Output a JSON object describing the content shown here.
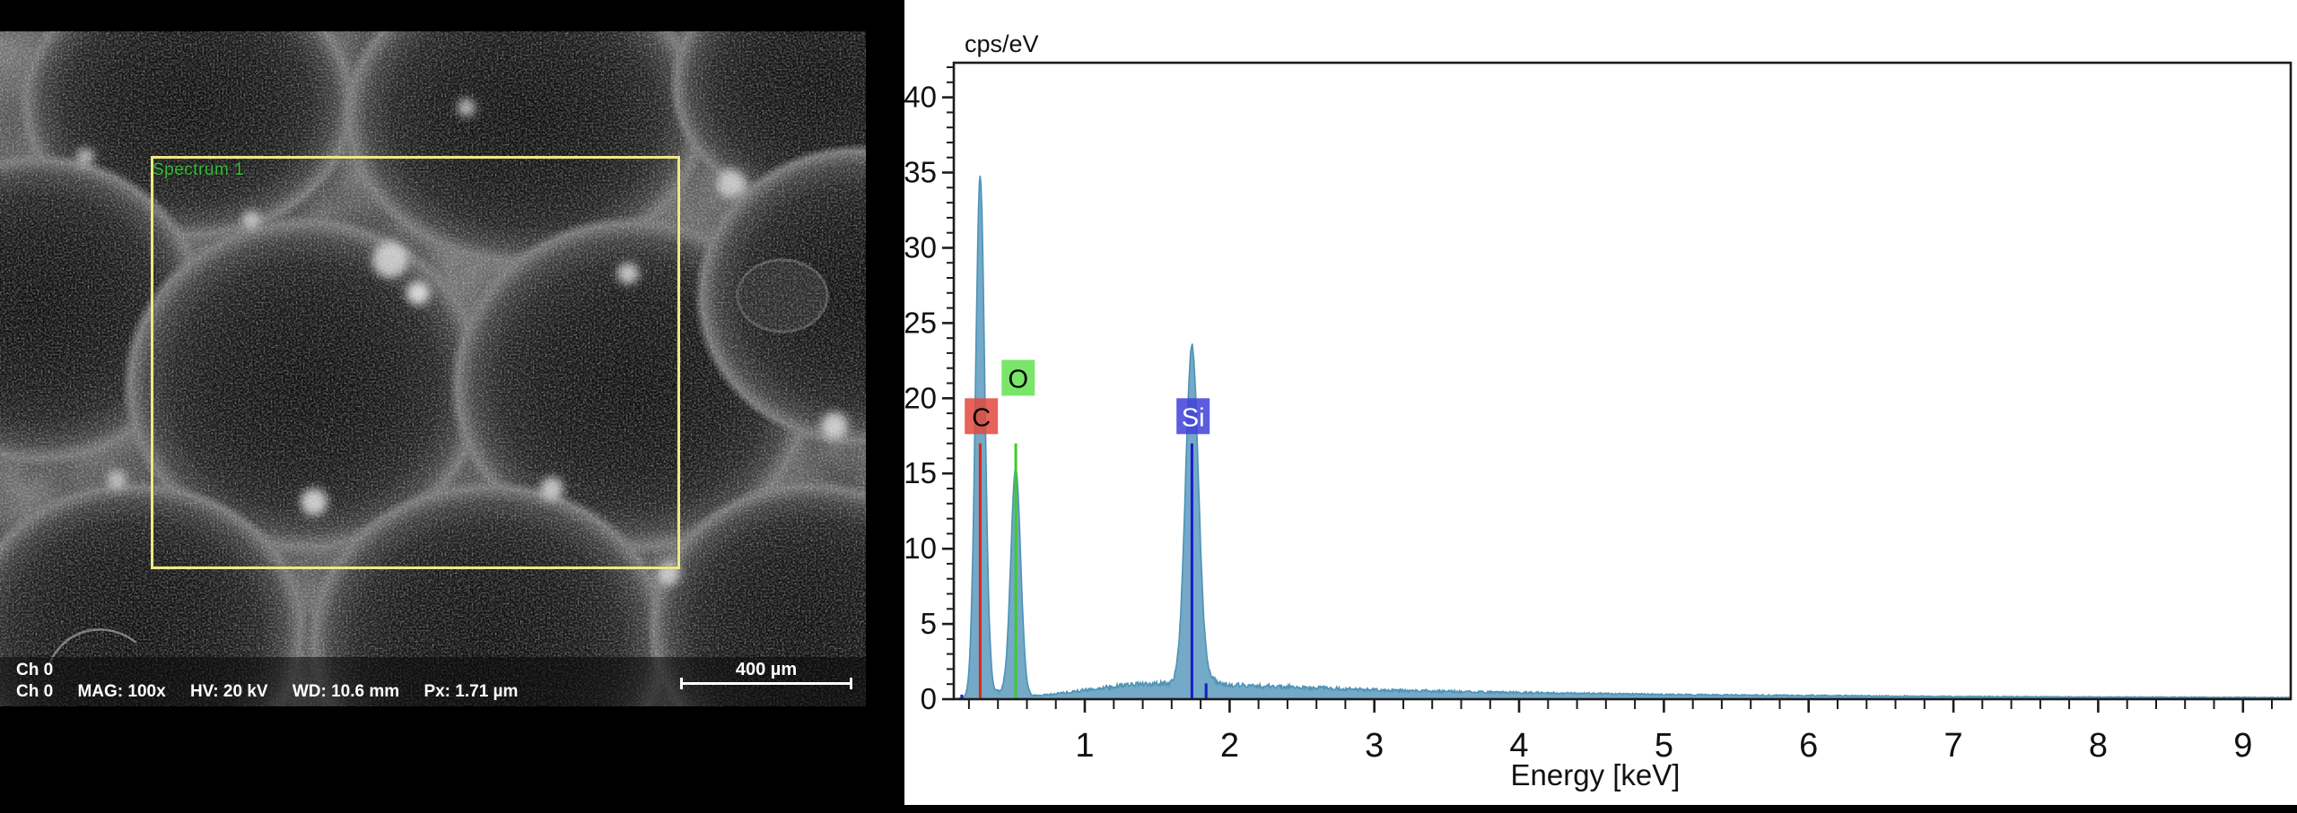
{
  "sem": {
    "spectrum_label": "Spectrum 1",
    "ch_label": "Ch 0",
    "info_items": [
      "Ch 0",
      "MAG: 100x",
      "HV: 20 kV",
      "WD: 10.6 mm",
      "Px: 1.71 µm"
    ],
    "scale_bar_label": "400 µm",
    "roi_color": "#ece989",
    "spectrum_label_color": "#35bd35"
  },
  "chart_data": {
    "type": "area",
    "title": "cps/eV",
    "xlabel": "Energy [keV]",
    "ylabel": "",
    "x_range": [
      0.095,
      9.33
    ],
    "y_range": [
      0,
      42.3
    ],
    "x_major_ticks": [
      1,
      2,
      3,
      4,
      5,
      6,
      7,
      8,
      9
    ],
    "x_minor_step": 0.2,
    "y_tick_labels": [
      0,
      5,
      10,
      15,
      20,
      25,
      30,
      35,
      40
    ],
    "y_major_step": 5,
    "y_minor_step": 1,
    "grid": false,
    "legend": false,
    "fill_color": "#74a9c7",
    "stroke_color": "#4e92b6",
    "axis_color": "#1c1c1c",
    "peaks": [
      {
        "element": "C",
        "line": "Ka",
        "energy_keV": 0.277,
        "height_cps_ev": 34.6,
        "sigma": 0.032
      },
      {
        "element": "O",
        "line": "Ka",
        "energy_keV": 0.523,
        "height_cps_ev": 15.0,
        "sigma": 0.034
      },
      {
        "element": "Si",
        "line": "Ka",
        "energy_keV": 1.74,
        "height_cps_ev": 22.4,
        "sigma": 0.044
      },
      {
        "element": "Si",
        "line": "Kb",
        "energy_keV": 1.838,
        "height_cps_ev": 0.5,
        "sigma": 0.05
      }
    ],
    "markers": [
      {
        "name": "C-Ka",
        "energy_keV": 0.277,
        "top": 17.0,
        "color": "#e02418"
      },
      {
        "name": "O-Ka",
        "energy_keV": 0.523,
        "top": 17.0,
        "color": "#3fcb28"
      },
      {
        "name": "Si-Ka",
        "energy_keV": 1.74,
        "top": 17.0,
        "color": "#1a1acc"
      },
      {
        "name": "Si-Kb",
        "energy_keV": 1.838,
        "top": 1.05,
        "color": "#1a1acc"
      },
      {
        "name": "Si-L",
        "energy_keV": 0.15,
        "top": 0.3,
        "color": "#1a1acc"
      }
    ],
    "labels": [
      {
        "text": "C",
        "center_keV": 0.285,
        "top_value": 20.0,
        "bg": "#e2493e",
        "fg": "#000000"
      },
      {
        "text": "O",
        "center_keV": 0.54,
        "top_value": 22.55,
        "bg": "#62e24f",
        "fg": "#000000"
      },
      {
        "text": "Si",
        "center_keV": 1.748,
        "top_value": 20.0,
        "bg": "#4040d8",
        "fg": "#ffffff"
      }
    ],
    "continuum": [
      [
        0.095,
        0.03
      ],
      [
        0.15,
        0.08
      ],
      [
        0.25,
        0.12
      ],
      [
        0.35,
        0.45
      ],
      [
        0.4,
        0.5
      ],
      [
        0.45,
        0.45
      ],
      [
        0.6,
        0.22
      ],
      [
        0.7,
        0.25
      ],
      [
        0.8,
        0.35
      ],
      [
        0.9,
        0.48
      ],
      [
        1.0,
        0.6
      ],
      [
        1.1,
        0.72
      ],
      [
        1.2,
        0.85
      ],
      [
        1.3,
        0.95
      ],
      [
        1.45,
        1.0
      ],
      [
        1.6,
        1.05
      ],
      [
        1.74,
        1.05
      ],
      [
        1.9,
        1.0
      ],
      [
        2.2,
        0.88
      ],
      [
        2.6,
        0.75
      ],
      [
        3.0,
        0.62
      ],
      [
        3.5,
        0.52
      ],
      [
        4.0,
        0.44
      ],
      [
        4.5,
        0.37
      ],
      [
        5.0,
        0.31
      ],
      [
        5.5,
        0.27
      ],
      [
        6.0,
        0.24
      ],
      [
        6.5,
        0.21
      ],
      [
        7.0,
        0.18
      ],
      [
        7.5,
        0.16
      ],
      [
        8.0,
        0.14
      ],
      [
        8.5,
        0.13
      ],
      [
        9.0,
        0.12
      ],
      [
        9.33,
        0.11
      ]
    ]
  }
}
